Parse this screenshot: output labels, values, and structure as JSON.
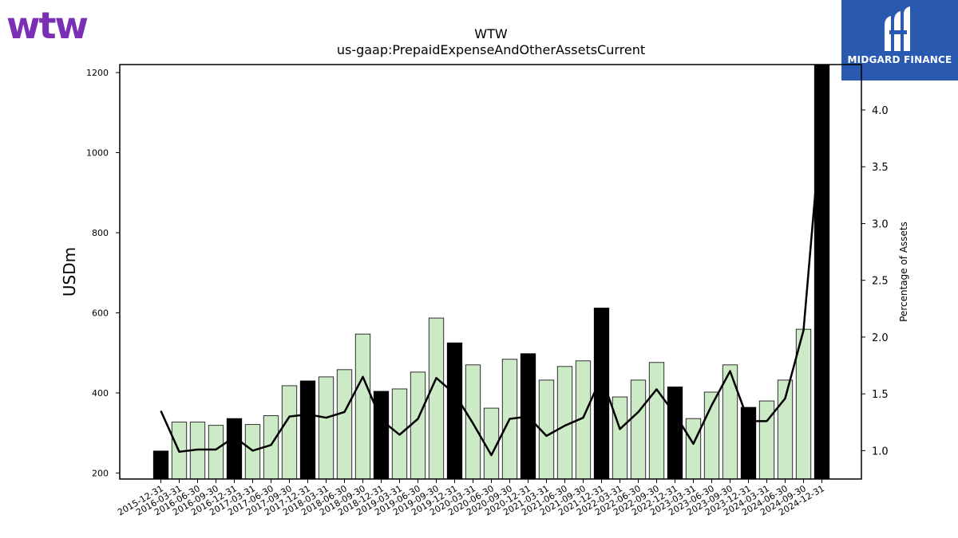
{
  "brand": {
    "company_logo_text": "wtw",
    "publisher_logo_text": "MIDGARD FINANCE",
    "company_color": "#7b2fb5",
    "publisher_color": "#2a5ab0"
  },
  "chart_data": {
    "type": "bar",
    "title": "WTW",
    "subtitle": "us-gaap:PrepaidExpenseAndOtherAssetsCurrent",
    "ylabel": "USDm",
    "y2label": "Percentage of Assets",
    "ylim": [
      185,
      1220
    ],
    "y2lim": [
      0.75,
      4.4
    ],
    "yticks": [
      200,
      400,
      600,
      800,
      1000,
      1200
    ],
    "y2ticks": [
      1.0,
      1.5,
      2.0,
      2.5,
      3.0,
      3.5,
      4.0
    ],
    "grid": false,
    "bar_colors": {
      "annual": "#000000",
      "quarterly": "#cdeac7"
    },
    "line_color": "#000000",
    "categories": [
      "2015-12-31",
      "2016-03-31",
      "2016-06-30",
      "2016-09-30",
      "2016-12-31",
      "2017-03-31",
      "2017-06-30",
      "2017-09-30",
      "2017-12-31",
      "2018-03-31",
      "2018-06-30",
      "2018-09-30",
      "2018-12-31",
      "2019-03-31",
      "2019-06-30",
      "2019-09-30",
      "2019-12-31",
      "2020-03-31",
      "2020-06-30",
      "2020-09-30",
      "2020-12-31",
      "2021-03-31",
      "2021-06-30",
      "2021-09-30",
      "2021-12-31",
      "2022-03-31",
      "2022-06-30",
      "2022-09-30",
      "2022-12-31",
      "2023-03-31",
      "2023-06-30",
      "2023-09-30",
      "2023-12-31",
      "2024-03-31",
      "2024-06-30",
      "2024-09-30",
      "2024-12-31"
    ],
    "series": [
      {
        "type": "bar",
        "axis": "left",
        "values": [
          255,
          327,
          327,
          319,
          336,
          321,
          343,
          418,
          430,
          440,
          458,
          547,
          404,
          410,
          452,
          587,
          525,
          470,
          362,
          484,
          498,
          432,
          466,
          480,
          612,
          390,
          432,
          476,
          415,
          336,
          402,
          470,
          364,
          380,
          432,
          559,
          1220
        ],
        "annual": [
          true,
          false,
          false,
          false,
          true,
          false,
          false,
          false,
          true,
          false,
          false,
          false,
          true,
          false,
          false,
          false,
          true,
          false,
          false,
          false,
          true,
          false,
          false,
          false,
          true,
          false,
          false,
          false,
          true,
          false,
          false,
          false,
          true,
          false,
          false,
          false,
          true
        ]
      },
      {
        "type": "line",
        "axis": "right",
        "values": [
          1.35,
          0.99,
          1.01,
          1.01,
          1.12,
          1.0,
          1.05,
          1.3,
          1.32,
          1.29,
          1.34,
          1.65,
          1.27,
          1.14,
          1.28,
          1.64,
          1.5,
          1.24,
          0.96,
          1.28,
          1.3,
          1.13,
          1.22,
          1.29,
          1.65,
          1.19,
          1.34,
          1.54,
          1.32,
          1.06,
          1.4,
          1.7,
          1.26,
          1.26,
          1.46,
          2.06,
          3.95
        ]
      }
    ]
  }
}
